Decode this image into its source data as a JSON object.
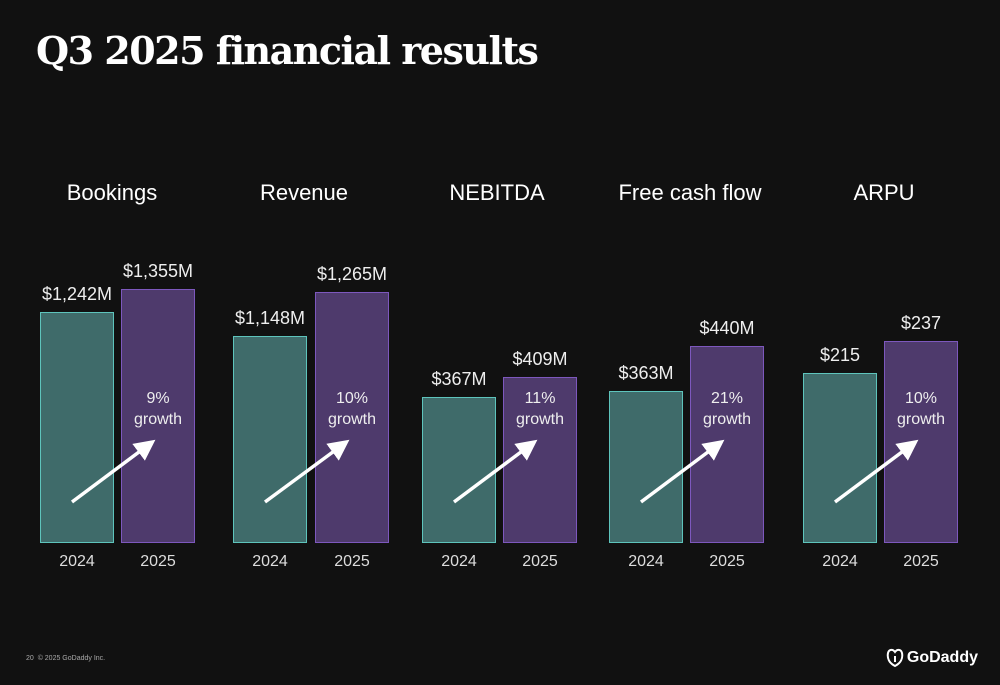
{
  "title": "Q3 2025 financial results",
  "footer": {
    "page": "20",
    "copyright": "© 2025 GoDaddy Inc.",
    "logo": "GoDaddy"
  },
  "colors": {
    "bg": "#111111",
    "y2024_fill": "#3f6b6a",
    "y2024_border": "#5ec4bc",
    "y2025_fill": "#4e3a6c",
    "y2025_border": "#7d58bd"
  },
  "chart_data": {
    "type": "bar",
    "categories": [
      "2024",
      "2025"
    ],
    "groups": [
      {
        "title": "Bookings",
        "values": [
          1242,
          1355
        ],
        "labels": [
          "$1,242M",
          "$1,355M"
        ],
        "growth": [
          "9%",
          "growth"
        ]
      },
      {
        "title": "Revenue",
        "values": [
          1148,
          1265
        ],
        "labels": [
          "$1,148M",
          "$1,265M"
        ],
        "growth": [
          "10%",
          "growth"
        ]
      },
      {
        "title": "NEBITDA",
        "values": [
          367,
          409
        ],
        "labels": [
          "$367M",
          "$409M"
        ],
        "growth": [
          "11%",
          "growth"
        ]
      },
      {
        "title": "Free cash flow",
        "values": [
          363,
          440
        ],
        "labels": [
          "$363M",
          "$440M"
        ],
        "growth": [
          "21%",
          "growth"
        ]
      },
      {
        "title": "ARPU",
        "values": [
          215,
          237
        ],
        "labels": [
          "$215",
          "$237"
        ],
        "growth": [
          "10%",
          "growth"
        ]
      }
    ]
  }
}
